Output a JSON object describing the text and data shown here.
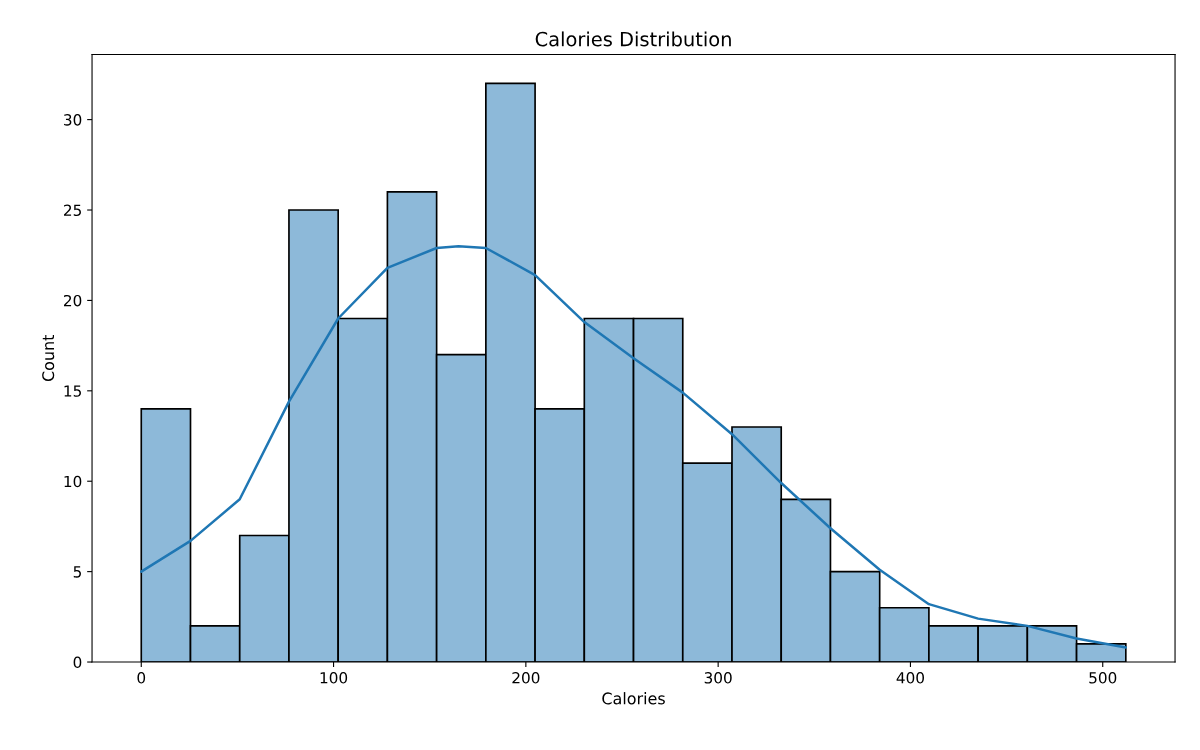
{
  "chart_data": {
    "type": "histogram",
    "title": "Calories Distribution",
    "xlabel": "Calories",
    "ylabel": "Count",
    "bins": [
      0,
      25.6,
      51.2,
      76.8,
      102.4,
      128,
      153.6,
      179.2,
      204.8,
      230.4,
      256,
      281.6,
      307.2,
      332.8,
      358.4,
      384,
      409.6,
      435.2,
      460.8,
      486.4,
      512
    ],
    "values": [
      14,
      2,
      7,
      25,
      19,
      26,
      17,
      32,
      14,
      19,
      19,
      11,
      13,
      9,
      5,
      3,
      2,
      2,
      2,
      1
    ],
    "color": "#8db9d9",
    "series": [
      {
        "type": "line",
        "color": "#1f77b4",
        "x": [
          0,
          25.6,
          51.2,
          76.8,
          102.4,
          128,
          153.6,
          165,
          179.2,
          204.8,
          230.4,
          256,
          281.6,
          307.2,
          332.8,
          358.4,
          384,
          409.6,
          435.2,
          460.8,
          486.4,
          512
        ],
        "values": [
          5.0,
          6.7,
          9.0,
          14.4,
          19.0,
          21.8,
          22.9,
          23.0,
          22.9,
          21.4,
          18.8,
          16.8,
          14.9,
          12.6,
          9.9,
          7.4,
          5.1,
          3.2,
          2.4,
          2.0,
          1.3,
          0.8
        ]
      }
    ],
    "xlim": [
      -25.6,
      537.6
    ],
    "ylim": [
      0,
      33.6
    ],
    "xticks": [
      0,
      100,
      200,
      300,
      400,
      500
    ],
    "yticks": [
      0,
      5,
      10,
      15,
      20,
      25,
      30
    ],
    "grid": false,
    "legend": false
  }
}
